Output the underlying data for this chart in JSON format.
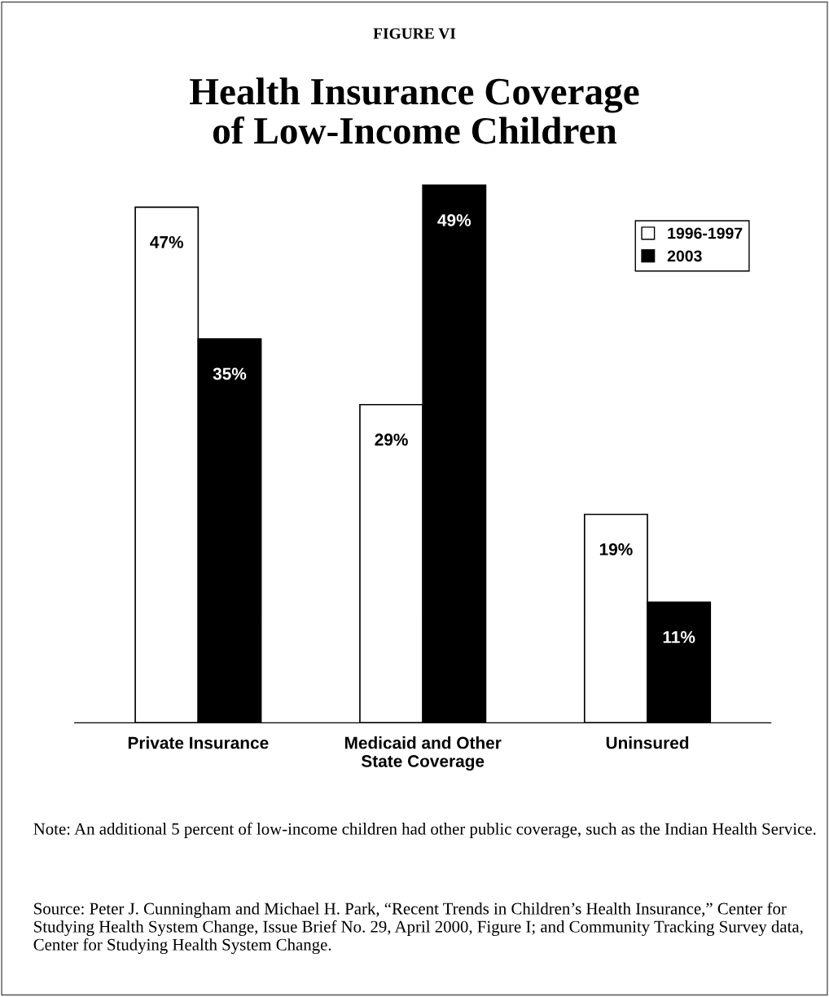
{
  "chart_data": {
    "type": "bar",
    "subtitle": "FIGURE VI",
    "title": "Health Insurance Coverage\nof Low-Income Children",
    "categories": [
      "Private Insurance",
      "Medicaid and Other\nState Coverage",
      "Uninsured"
    ],
    "series": [
      {
        "name": "1996-1997",
        "color": "#ffffff",
        "values": [
          47,
          29,
          19
        ],
        "value_labels": [
          "47%",
          "29%",
          "19%"
        ]
      },
      {
        "name": "2003",
        "color": "#000000",
        "values": [
          35,
          49,
          11
        ],
        "value_labels": [
          "35%",
          "49%",
          "11%"
        ]
      }
    ],
    "legend": "top right",
    "grid": false,
    "annotations": [
      "Note: An additional 5 percent of low-income children had other public coverage, such as the Indian Health Service.",
      "Source: Peter J. Cunningham and Michael H. Park, “Recent Trends in Children’s Health Insurance,” Center for Studying Health System Change, Issue Brief No. 29, April 2000, Figure I; and Community Tracking Survey data, Center for Studying Health System Change."
    ]
  }
}
